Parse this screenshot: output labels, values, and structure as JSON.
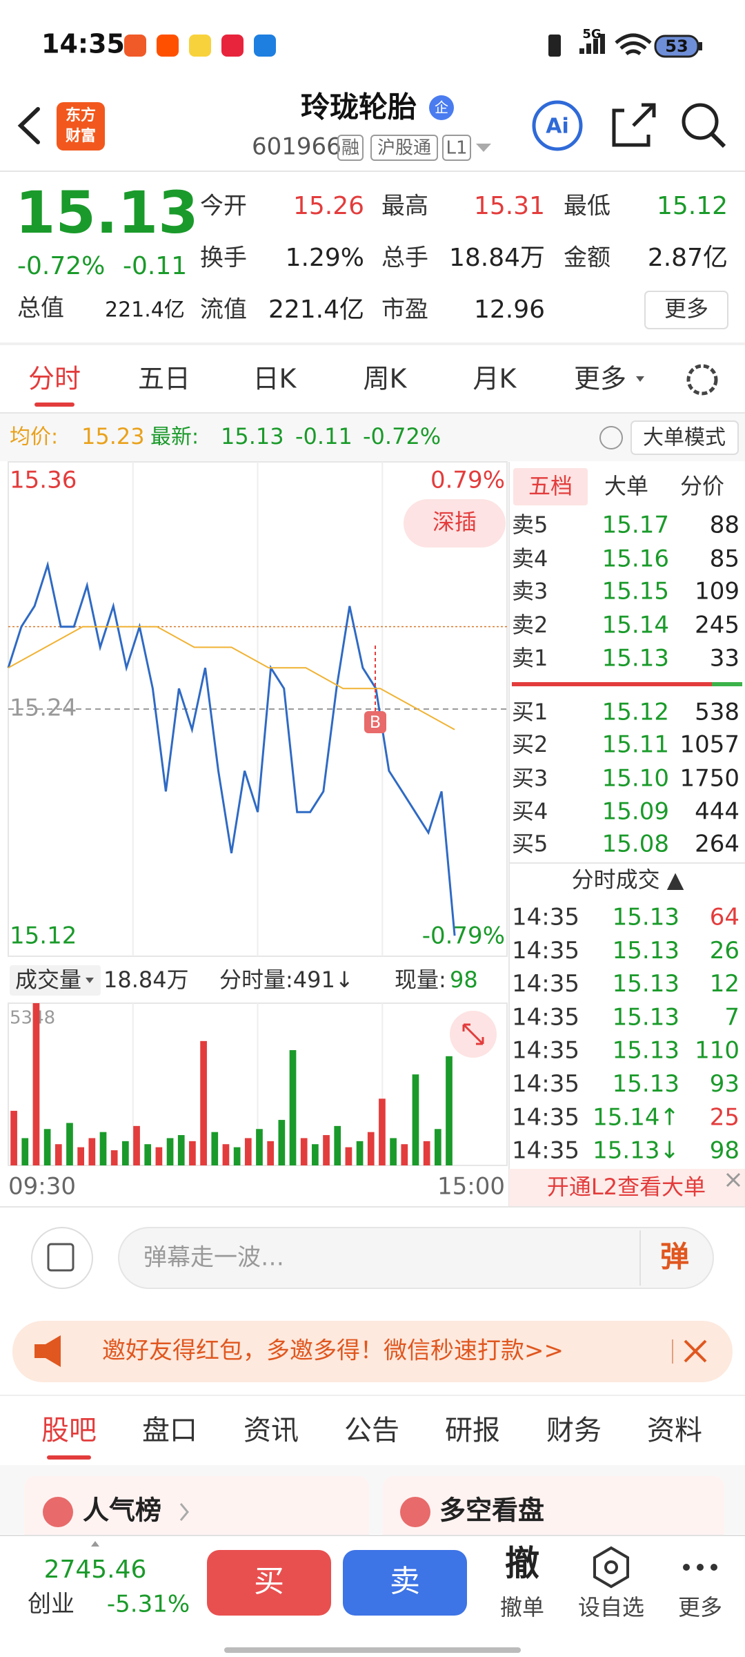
{
  "status_bar": {
    "time": "14:35",
    "network": "5G",
    "battery": "53"
  },
  "header": {
    "logo": [
      "东方",
      "财富"
    ],
    "title": "玲珑轮胎",
    "badge": "企",
    "code": "601966",
    "tags": [
      "融",
      "沪股通",
      "L1"
    ],
    "ai": "Ai"
  },
  "quote": {
    "price": "15.13",
    "change_pct": "-0.72%",
    "change": "-0.11",
    "stats": [
      {
        "label": "今开",
        "value": "15.26",
        "color": "#e33c3c"
      },
      {
        "label": "最高",
        "value": "15.31",
        "color": "#e33c3c"
      },
      {
        "label": "最低",
        "value": "15.12",
        "color": "#1a9a2a"
      },
      {
        "label": "换手",
        "value": "1.29%",
        "color": "#222222"
      },
      {
        "label": "总手",
        "value": "18.84万",
        "color": "#222222"
      },
      {
        "label": "金额",
        "value": "2.87亿",
        "color": "#222222"
      },
      {
        "label": "总值",
        "value": "221.4亿",
        "color": "#222222"
      },
      {
        "label": "流值",
        "value": "221.4亿",
        "color": "#222222"
      },
      {
        "label": "市盈",
        "value": "12.96",
        "color": "#222222"
      }
    ],
    "more": "更多"
  },
  "tabs": [
    "分时",
    "五日",
    "日K",
    "周K",
    "月K",
    "更多"
  ],
  "info": {
    "avg_label": "均价:",
    "avg": "15.23",
    "latest_label": "最新:",
    "latest": "15.13",
    "change": "-0.11",
    "change_pct": "-0.72%",
    "mode": "大单模式"
  },
  "chart_data": {
    "type": "line",
    "ylim": [
      15.12,
      15.36
    ],
    "yticks": [
      15.36,
      15.24,
      15.12
    ],
    "y2lim": [
      -0.79,
      0.79
    ],
    "y2ticks": [
      {
        "value": 0.79,
        "label": "0.79%"
      },
      {
        "value": -0.79,
        "label": "-0.79%"
      }
    ],
    "x_labels": [
      "09:30",
      "15:00"
    ],
    "series": [
      {
        "color": "#2f6ac4",
        "values": [
          15.26,
          15.28,
          15.29,
          15.31,
          15.28,
          15.28,
          15.3,
          15.27,
          15.29,
          15.26,
          15.28,
          15.25,
          15.2,
          15.25,
          15.23,
          15.26,
          15.21,
          15.17,
          15.21,
          15.19,
          15.26,
          15.25,
          15.19,
          15.19,
          15.2,
          15.25,
          15.29,
          15.26,
          15.25,
          15.21,
          15.2,
          15.19,
          15.18,
          15.2,
          15.13
        ]
      },
      {
        "color": "#f0b232",
        "values": [
          15.26,
          15.27,
          15.28,
          15.28,
          15.28,
          15.27,
          15.27,
          15.26,
          15.26,
          15.25,
          15.25,
          15.24,
          15.23
        ]
      }
    ],
    "button": "深插",
    "marker": "B"
  },
  "volume_chart": {
    "type": "bar",
    "label": "成交量",
    "total": "18.84万",
    "period_label": "分时量:491↓",
    "current_label": "现量:",
    "current": "98",
    "ylim": [
      0,
      5348
    ],
    "yticks": [
      5348
    ],
    "values": [
      1800,
      900,
      5348,
      1200,
      700,
      1400,
      600,
      900,
      1100,
      500,
      800,
      1300,
      700,
      600,
      900,
      1000,
      800,
      4100,
      1100,
      700,
      600,
      900,
      1200,
      800,
      1500,
      3800,
      900,
      700,
      1000,
      1300,
      600,
      800,
      1100,
      2200,
      900,
      700,
      3000,
      800,
      1200,
      3600
    ],
    "colors": [
      "#e33c3c",
      "#1a9a2a",
      "#e33c3c",
      "#1a9a2a",
      "#e33c3c",
      "#1a9a2a",
      "#e33c3c",
      "#e33c3c",
      "#1a9a2a",
      "#e33c3c",
      "#1a9a2a",
      "#e33c3c",
      "#1a9a2a",
      "#e33c3c",
      "#1a9a2a",
      "#1a9a2a",
      "#e33c3c",
      "#e33c3c",
      "#1a9a2a",
      "#e33c3c",
      "#1a9a2a",
      "#e33c3c",
      "#1a9a2a",
      "#e33c3c",
      "#1a9a2a",
      "#1a9a2a",
      "#e33c3c",
      "#1a9a2a",
      "#e33c3c",
      "#1a9a2a",
      "#e33c3c",
      "#1a9a2a",
      "#e33c3c",
      "#e33c3c",
      "#1a9a2a",
      "#e33c3c",
      "#1a9a2a",
      "#e33c3c",
      "#1a9a2a",
      "#1a9a2a"
    ]
  },
  "order_book": {
    "tabs": [
      "五档",
      "大单",
      "分价"
    ],
    "asks": [
      {
        "label": "卖5",
        "price": "15.17",
        "volume": "88"
      },
      {
        "label": "卖4",
        "price": "15.16",
        "volume": "85"
      },
      {
        "label": "卖3",
        "price": "15.15",
        "volume": "109"
      },
      {
        "label": "卖2",
        "price": "15.14",
        "volume": "245"
      },
      {
        "label": "卖1",
        "price": "15.13",
        "volume": "33"
      }
    ],
    "bids": [
      {
        "label": "买1",
        "price": "15.12",
        "volume": "538"
      },
      {
        "label": "买2",
        "price": "15.11",
        "volume": "1057"
      },
      {
        "label": "买3",
        "price": "15.10",
        "volume": "1750"
      },
      {
        "label": "买4",
        "price": "15.09",
        "volume": "444"
      },
      {
        "label": "买5",
        "price": "15.08",
        "volume": "264"
      }
    ]
  },
  "trades": {
    "title": "分时成交 ▲",
    "rows": [
      {
        "time": "14:35",
        "price": "15.13",
        "volume": "64",
        "color": "#e33c3c"
      },
      {
        "time": "14:35",
        "price": "15.13",
        "volume": "26",
        "color": "#1a9a2a"
      },
      {
        "time": "14:35",
        "price": "15.13",
        "volume": "12",
        "color": "#1a9a2a"
      },
      {
        "time": "14:35",
        "price": "15.13",
        "volume": "7",
        "color": "#1a9a2a"
      },
      {
        "time": "14:35",
        "price": "15.13",
        "volume": "110",
        "color": "#1a9a2a"
      },
      {
        "time": "14:35",
        "price": "15.13",
        "volume": "93",
        "color": "#1a9a2a"
      },
      {
        "time": "14:35",
        "price": "15.14↑",
        "volume": "25",
        "color": "#e33c3c"
      },
      {
        "time": "14:35",
        "price": "15.13↓",
        "volume": "98",
        "color": "#1a9a2a"
      }
    ]
  },
  "l2": "开通L2查看大单",
  "comment": {
    "placeholder": "弹幕走一波…",
    "button": "弹"
  },
  "banner": "邀好友得红包，多邀多得！微信秒速打款>>",
  "section_tabs": [
    "股吧",
    "盘口",
    "资讯",
    "公告",
    "研报",
    "财务",
    "资料"
  ],
  "cards": [
    "人气榜",
    "多空看盘"
  ],
  "bottom": {
    "index_value": "2745.46",
    "index_name": "创业",
    "index_change": "-5.31%",
    "buy": "买",
    "sell": "卖",
    "cancel_icon": "撤",
    "cancel": "撤单",
    "watch": "设自选",
    "more": "更多"
  }
}
